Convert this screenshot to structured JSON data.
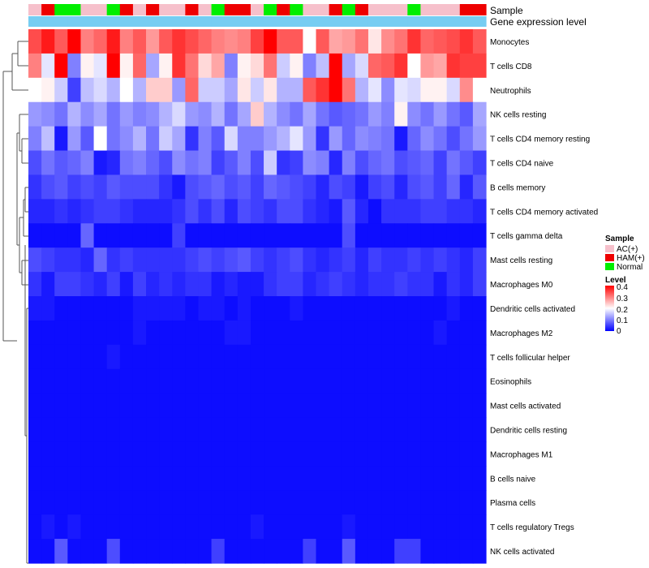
{
  "chart_data": {
    "type": "heatmap",
    "annotation_tracks": [
      "Sample",
      "Gene expression level"
    ],
    "samples": [
      "AC(+)",
      "HAM(+)",
      "Normal",
      "Normal",
      "AC(+)",
      "AC(+)",
      "Normal",
      "HAM(+)",
      "AC(+)",
      "HAM(+)",
      "AC(+)",
      "AC(+)",
      "HAM(+)",
      "AC(+)",
      "Normal",
      "HAM(+)",
      "HAM(+)",
      "AC(+)",
      "Normal",
      "HAM(+)",
      "Normal",
      "AC(+)",
      "AC(+)",
      "HAM(+)",
      "Normal",
      "HAM(+)",
      "AC(+)",
      "AC(+)",
      "AC(+)",
      "Normal",
      "AC(+)",
      "AC(+)",
      "AC(+)",
      "HAM(+)",
      "HAM(+)"
    ],
    "gene_expression_color": "#76cdf2",
    "rows": [
      {
        "label": "Monocytes",
        "values": [
          0.34,
          0.38,
          0.33,
          0.42,
          0.3,
          0.32,
          0.38,
          0.3,
          0.33,
          0.28,
          0.33,
          0.36,
          0.34,
          0.32,
          0.3,
          0.29,
          0.3,
          0.35,
          0.42,
          0.33,
          0.33,
          0.2,
          0.33,
          0.27,
          0.28,
          0.31,
          0.22,
          0.29,
          0.31,
          0.36,
          0.32,
          0.33,
          0.34,
          0.36,
          0.33
        ]
      },
      {
        "label": "T cells CD8",
        "values": [
          0.3,
          0.18,
          0.42,
          0.1,
          0.21,
          0.18,
          0.4,
          0.21,
          0.32,
          0.13,
          0.21,
          0.36,
          0.31,
          0.23,
          0.27,
          0.1,
          0.21,
          0.23,
          0.31,
          0.16,
          0.21,
          0.1,
          0.15,
          0.4,
          0.13,
          0.17,
          0.32,
          0.33,
          0.36,
          0.2,
          0.28,
          0.27,
          0.36,
          0.35,
          0.35
        ]
      },
      {
        "label": "Neutrophils",
        "values": [
          0.2,
          0.21,
          0.16,
          0.05,
          0.15,
          0.17,
          0.14,
          0.2,
          0.14,
          0.24,
          0.24,
          0.12,
          0.32,
          0.16,
          0.16,
          0.13,
          0.22,
          0.16,
          0.22,
          0.14,
          0.14,
          0.33,
          0.36,
          0.4,
          0.31,
          0.14,
          0.18,
          0.11,
          0.18,
          0.17,
          0.21,
          0.21,
          0.17,
          0.29,
          0.2
        ]
      },
      {
        "label": "NK cells resting",
        "values": [
          0.12,
          0.11,
          0.09,
          0.14,
          0.11,
          0.13,
          0.09,
          0.12,
          0.1,
          0.11,
          0.14,
          0.17,
          0.12,
          0.11,
          0.14,
          0.09,
          0.13,
          0.24,
          0.14,
          0.11,
          0.09,
          0.13,
          0.09,
          0.07,
          0.08,
          0.09,
          0.12,
          0.1,
          0.21,
          0.11,
          0.09,
          0.12,
          0.09,
          0.07,
          0.13
        ]
      },
      {
        "label": "T cells CD4 memory resting",
        "values": [
          0.1,
          0.15,
          0.02,
          0.12,
          0.07,
          0.2,
          0.09,
          0.11,
          0.14,
          0.09,
          0.16,
          0.13,
          0.04,
          0.1,
          0.07,
          0.17,
          0.1,
          0.1,
          0.12,
          0.14,
          0.18,
          0.12,
          0.04,
          0.12,
          0.08,
          0.11,
          0.1,
          0.09,
          0.02,
          0.08,
          0.11,
          0.09,
          0.06,
          0.09,
          0.12
        ]
      },
      {
        "label": "T cells CD4 naive",
        "values": [
          0.06,
          0.09,
          0.07,
          0.08,
          0.1,
          0.02,
          0.03,
          0.09,
          0.1,
          0.08,
          0.06,
          0.11,
          0.09,
          0.1,
          0.05,
          0.07,
          0.1,
          0.06,
          0.16,
          0.04,
          0.05,
          0.11,
          0.1,
          0.03,
          0.1,
          0.06,
          0.08,
          0.09,
          0.06,
          0.07,
          0.08,
          0.05,
          0.09,
          0.07,
          0.05
        ]
      },
      {
        "label": "B cells memory",
        "values": [
          0.04,
          0.06,
          0.07,
          0.05,
          0.06,
          0.05,
          0.07,
          0.06,
          0.06,
          0.06,
          0.04,
          0.02,
          0.06,
          0.07,
          0.08,
          0.06,
          0.07,
          0.05,
          0.08,
          0.07,
          0.06,
          0.05,
          0.03,
          0.06,
          0.05,
          0.02,
          0.05,
          0.06,
          0.03,
          0.06,
          0.07,
          0.05,
          0.08,
          0.03,
          0.07
        ]
      },
      {
        "label": "T cells CD4 memory activated",
        "values": [
          0.03,
          0.03,
          0.04,
          0.03,
          0.04,
          0.05,
          0.05,
          0.04,
          0.03,
          0.03,
          0.03,
          0.04,
          0.06,
          0.04,
          0.06,
          0.03,
          0.06,
          0.05,
          0.04,
          0.06,
          0.06,
          0.04,
          0.03,
          0.02,
          0.07,
          0.03,
          0.01,
          0.04,
          0.04,
          0.04,
          0.05,
          0.05,
          0.04,
          0.04,
          0.03
        ]
      },
      {
        "label": "T cells gamma delta",
        "values": [
          0.01,
          0.01,
          0.01,
          0.01,
          0.08,
          0.01,
          0.01,
          0.01,
          0.01,
          0.01,
          0.01,
          0.05,
          0.01,
          0.01,
          0.01,
          0.01,
          0.01,
          0.01,
          0.01,
          0.01,
          0.01,
          0.01,
          0.01,
          0.01,
          0.06,
          0.01,
          0.01,
          0.01,
          0.01,
          0.01,
          0.01,
          0.01,
          0.01,
          0.01,
          0.01
        ]
      },
      {
        "label": "Mast cells resting",
        "values": [
          0.06,
          0.05,
          0.04,
          0.04,
          0.03,
          0.08,
          0.04,
          0.05,
          0.04,
          0.04,
          0.04,
          0.04,
          0.05,
          0.06,
          0.05,
          0.06,
          0.07,
          0.05,
          0.04,
          0.05,
          0.06,
          0.04,
          0.03,
          0.04,
          0.05,
          0.03,
          0.05,
          0.04,
          0.04,
          0.05,
          0.04,
          0.05,
          0.04,
          0.03,
          0.05
        ]
      },
      {
        "label": "Macrophages M0",
        "values": [
          0.04,
          0.02,
          0.05,
          0.05,
          0.04,
          0.03,
          0.05,
          0.02,
          0.05,
          0.03,
          0.04,
          0.03,
          0.04,
          0.04,
          0.02,
          0.03,
          0.02,
          0.02,
          0.04,
          0.05,
          0.05,
          0.03,
          0.04,
          0.05,
          0.04,
          0.03,
          0.04,
          0.04,
          0.05,
          0.04,
          0.04,
          0.02,
          0.04,
          0.03,
          0.05
        ]
      },
      {
        "label": "Dendritic cells activated",
        "values": [
          0.02,
          0.02,
          0.01,
          0.01,
          0.01,
          0.01,
          0.01,
          0.01,
          0.02,
          0.02,
          0.02,
          0.02,
          0.01,
          0.02,
          0.02,
          0.01,
          0.02,
          0.01,
          0.01,
          0.01,
          0.02,
          0.01,
          0.01,
          0.01,
          0.01,
          0.01,
          0.01,
          0.01,
          0.01,
          0.01,
          0.01,
          0.01,
          0.02,
          0.01,
          0.01
        ]
      },
      {
        "label": "Macrophages M2",
        "values": [
          0.01,
          0.01,
          0.01,
          0.01,
          0.01,
          0.01,
          0.01,
          0.01,
          0.02,
          0.01,
          0.01,
          0.01,
          0.01,
          0.01,
          0.01,
          0.02,
          0.02,
          0.01,
          0.01,
          0.01,
          0.01,
          0.01,
          0.01,
          0.01,
          0.01,
          0.01,
          0.01,
          0.01,
          0.01,
          0.01,
          0.01,
          0.02,
          0.01,
          0.01,
          0.01
        ]
      },
      {
        "label": "T cells follicular helper",
        "values": [
          0.01,
          0.01,
          0.01,
          0.01,
          0.01,
          0.01,
          0.02,
          0.01,
          0.01,
          0.01,
          0.01,
          0.01,
          0.01,
          0.01,
          0.01,
          0.01,
          0.01,
          0.01,
          0.01,
          0.01,
          0.01,
          0.01,
          0.01,
          0.01,
          0.01,
          0.01,
          0.01,
          0.01,
          0.01,
          0.01,
          0.01,
          0.01,
          0.01,
          0.01,
          0.01
        ]
      },
      {
        "label": "Eosinophils",
        "values": [
          0.01,
          0.01,
          0.01,
          0.01,
          0.01,
          0.01,
          0.01,
          0.01,
          0.01,
          0.01,
          0.01,
          0.01,
          0.01,
          0.01,
          0.01,
          0.01,
          0.01,
          0.01,
          0.01,
          0.01,
          0.01,
          0.01,
          0.01,
          0.01,
          0.01,
          0.01,
          0.01,
          0.01,
          0.01,
          0.01,
          0.01,
          0.01,
          0.01,
          0.01,
          0.01
        ]
      },
      {
        "label": "Mast cells activated",
        "values": [
          0.01,
          0.01,
          0.01,
          0.01,
          0.01,
          0.01,
          0.01,
          0.01,
          0.01,
          0.01,
          0.01,
          0.01,
          0.01,
          0.01,
          0.01,
          0.01,
          0.01,
          0.01,
          0.01,
          0.01,
          0.01,
          0.01,
          0.01,
          0.01,
          0.01,
          0.01,
          0.01,
          0.01,
          0.01,
          0.01,
          0.01,
          0.01,
          0.01,
          0.01,
          0.01
        ]
      },
      {
        "label": "Dendritic cells resting",
        "values": [
          0.01,
          0.01,
          0.01,
          0.01,
          0.01,
          0.01,
          0.01,
          0.01,
          0.01,
          0.01,
          0.01,
          0.01,
          0.01,
          0.01,
          0.01,
          0.01,
          0.01,
          0.01,
          0.01,
          0.01,
          0.01,
          0.01,
          0.01,
          0.01,
          0.01,
          0.01,
          0.01,
          0.01,
          0.01,
          0.01,
          0.01,
          0.01,
          0.01,
          0.01,
          0.01
        ]
      },
      {
        "label": "Macrophages M1",
        "values": [
          0.01,
          0.01,
          0.01,
          0.01,
          0.01,
          0.01,
          0.01,
          0.01,
          0.01,
          0.01,
          0.01,
          0.01,
          0.01,
          0.01,
          0.01,
          0.01,
          0.01,
          0.01,
          0.01,
          0.01,
          0.01,
          0.01,
          0.01,
          0.01,
          0.01,
          0.01,
          0.01,
          0.01,
          0.01,
          0.01,
          0.01,
          0.01,
          0.01,
          0.01,
          0.01
        ]
      },
      {
        "label": "B cells naive",
        "values": [
          0.01,
          0.01,
          0.01,
          0.01,
          0.01,
          0.01,
          0.01,
          0.01,
          0.01,
          0.01,
          0.01,
          0.01,
          0.01,
          0.01,
          0.01,
          0.01,
          0.01,
          0.01,
          0.01,
          0.01,
          0.01,
          0.01,
          0.01,
          0.01,
          0.01,
          0.01,
          0.01,
          0.01,
          0.01,
          0.01,
          0.01,
          0.01,
          0.01,
          0.01,
          0.01
        ]
      },
      {
        "label": "Plasma cells",
        "values": [
          0.01,
          0.01,
          0.01,
          0.01,
          0.01,
          0.01,
          0.01,
          0.01,
          0.01,
          0.01,
          0.01,
          0.01,
          0.01,
          0.01,
          0.01,
          0.01,
          0.01,
          0.01,
          0.01,
          0.01,
          0.01,
          0.01,
          0.01,
          0.01,
          0.01,
          0.01,
          0.01,
          0.01,
          0.01,
          0.01,
          0.01,
          0.01,
          0.01,
          0.01,
          0.01
        ]
      },
      {
        "label": "T cells regulatory  Tregs",
        "values": [
          0.01,
          0.02,
          0.01,
          0.02,
          0.01,
          0.01,
          0.01,
          0.01,
          0.01,
          0.01,
          0.01,
          0.01,
          0.01,
          0.01,
          0.01,
          0.01,
          0.01,
          0.02,
          0.01,
          0.01,
          0.01,
          0.01,
          0.01,
          0.01,
          0.02,
          0.01,
          0.01,
          0.01,
          0.01,
          0.01,
          0.01,
          0.01,
          0.01,
          0.01,
          0.01
        ]
      },
      {
        "label": "NK cells activated",
        "values": [
          0.01,
          0.01,
          0.07,
          0.01,
          0.01,
          0.01,
          0.06,
          0.01,
          0.01,
          0.01,
          0.01,
          0.01,
          0.01,
          0.01,
          0.05,
          0.01,
          0.01,
          0.01,
          0.01,
          0.01,
          0.01,
          0.05,
          0.01,
          0.01,
          0.07,
          0.01,
          0.01,
          0.01,
          0.05,
          0.05,
          0.01,
          0.01,
          0.01,
          0.01,
          0.01
        ]
      }
    ],
    "legend_sample": {
      "title": "Sample",
      "items": [
        {
          "label": "AC(+)",
          "color": "#f6c0cb"
        },
        {
          "label": "HAM(+)",
          "color": "#ee0000"
        },
        {
          "label": "Normal",
          "color": "#00ee00"
        }
      ]
    },
    "legend_level": {
      "title": "Level",
      "ticks": [
        "0.4",
        "0.3",
        "0.2",
        "0.1",
        "0"
      ],
      "range": [
        0,
        0.4
      ]
    },
    "color_scale": {
      "low": "#0000ff",
      "mid": "#ffffff",
      "high": "#ff0000",
      "mid_value": 0.2
    }
  }
}
